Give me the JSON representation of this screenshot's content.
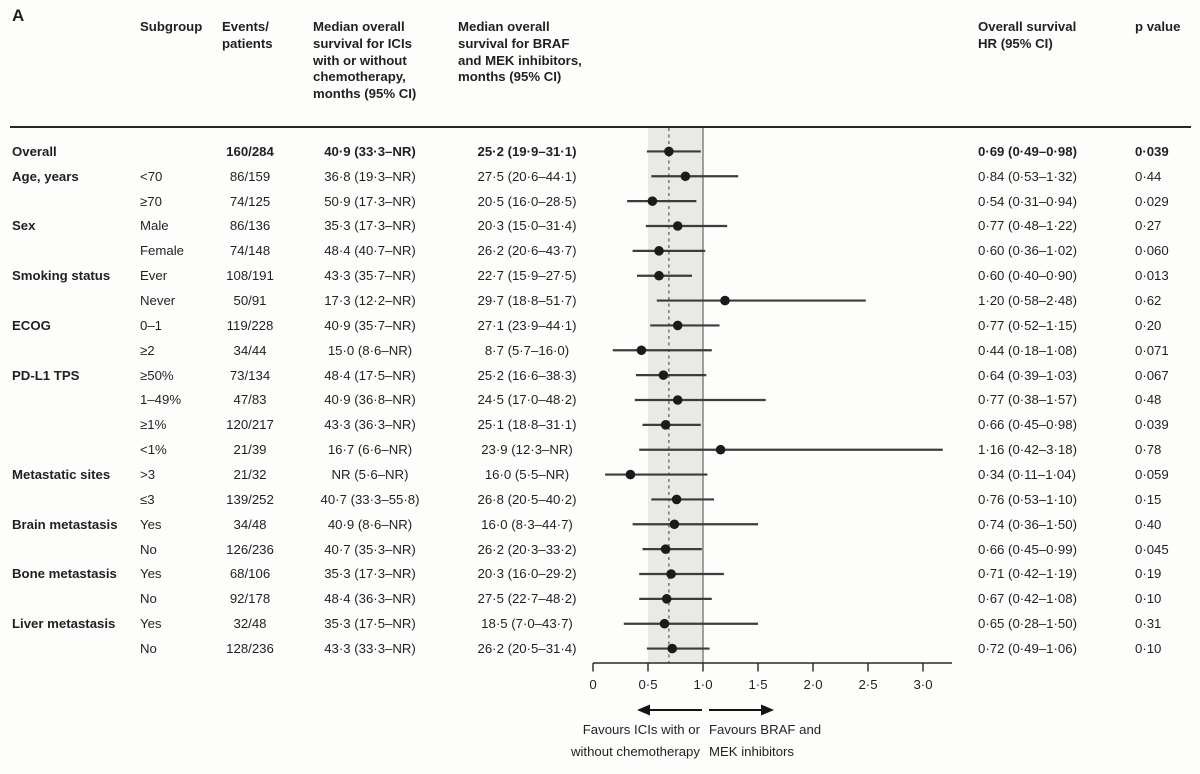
{
  "panel_label": "A",
  "table": {
    "headers": {
      "subgroup": "Subgroup",
      "events": "Events/\npatients",
      "ici": "Median overall\nsurvival for ICIs\nwith or without\nchemotherapy,\nmonths (95% CI)",
      "braf": "Median overall\nsurvival for BRAF\nand MEK inhibitors,\nmonths (95% CI)",
      "hr": "Overall survival\nHR (95% CI)",
      "p": "p value"
    }
  },
  "chart_data": {
    "type": "scatter",
    "subtype": "forest-plot",
    "xlabel_ticks": [
      "0",
      "0·5",
      "1·0",
      "1·5",
      "2·0",
      "2·5",
      "3·0"
    ],
    "axis": {
      "min": 0,
      "max": 3.26,
      "ticks": [
        0,
        0.5,
        1.0,
        1.5,
        2.0,
        2.5,
        3.0
      ]
    },
    "shaded_region": [
      0.5,
      1.0
    ],
    "reference_line": 0.69,
    "null_line": 1.0,
    "favours_left": "Favours ICIs with or\nwithout chemotherapy",
    "favours_right": "Favours BRAF and\nMEK inhibitors",
    "colors": {
      "band": "#e9eae5",
      "reference_dash": "#5f6360",
      "null_line": "#7a7a7a",
      "ci_line": "#3c3c3c",
      "point": "#1b1b1b",
      "axis": "#2a2627",
      "text": "#231f20"
    },
    "rows": [
      {
        "category": "Overall",
        "subgroup": "",
        "events": "160/284",
        "ici": "40·9 (33·3–NR)",
        "braf": "25·2 (19·9–31·1)",
        "hr_text": "0·69 (0·49–0·98)",
        "p": "0·039",
        "hr": 0.69,
        "lo": 0.49,
        "hi": 0.98,
        "bold": true
      },
      {
        "category": "Age, years",
        "subgroup": "<70",
        "events": "86/159",
        "ici": "36·8 (19·3–NR)",
        "braf": "27·5 (20·6–44·1)",
        "hr_text": "0·84 (0·53–1·32)",
        "p": "0·44",
        "hr": 0.84,
        "lo": 0.53,
        "hi": 1.32,
        "bold": false
      },
      {
        "category": "",
        "subgroup": "≥70",
        "events": "74/125",
        "ici": "50·9 (17·3–NR)",
        "braf": "20·5 (16·0–28·5)",
        "hr_text": "0·54 (0·31–0·94)",
        "p": "0·029",
        "hr": 0.54,
        "lo": 0.31,
        "hi": 0.94,
        "bold": false
      },
      {
        "category": "Sex",
        "subgroup": "Male",
        "events": "86/136",
        "ici": "35·3 (17·3–NR)",
        "braf": "20·3 (15·0–31·4)",
        "hr_text": "0·77 (0·48–1·22)",
        "p": "0·27",
        "hr": 0.77,
        "lo": 0.48,
        "hi": 1.22,
        "bold": false
      },
      {
        "category": "",
        "subgroup": "Female",
        "events": "74/148",
        "ici": "48·4 (40·7–NR)",
        "braf": "26·2 (20·6–43·7)",
        "hr_text": "0·60 (0·36–1·02)",
        "p": "0·060",
        "hr": 0.6,
        "lo": 0.36,
        "hi": 1.02,
        "bold": false
      },
      {
        "category": "Smoking status",
        "subgroup": "Ever",
        "events": "108/191",
        "ici": "43·3 (35·7–NR)",
        "braf": "22·7 (15·9–27·5)",
        "hr_text": "0·60 (0·40–0·90)",
        "p": "0·013",
        "hr": 0.6,
        "lo": 0.4,
        "hi": 0.9,
        "bold": false
      },
      {
        "category": "",
        "subgroup": "Never",
        "events": "50/91",
        "ici": "17·3 (12·2–NR)",
        "braf": "29·7 (18·8–51·7)",
        "hr_text": "1·20 (0·58–2·48)",
        "p": "0·62",
        "hr": 1.2,
        "lo": 0.58,
        "hi": 2.48,
        "bold": false
      },
      {
        "category": "ECOG",
        "subgroup": "0–1",
        "events": "119/228",
        "ici": "40·9 (35·7–NR)",
        "braf": "27·1 (23·9–44·1)",
        "hr_text": "0·77 (0·52–1·15)",
        "p": "0·20",
        "hr": 0.77,
        "lo": 0.52,
        "hi": 1.15,
        "bold": false
      },
      {
        "category": "",
        "subgroup": "≥2",
        "events": "34/44",
        "ici": "15·0 (8·6–NR)",
        "braf": "8·7 (5·7–16·0)",
        "hr_text": "0·44 (0·18–1·08)",
        "p": "0·071",
        "hr": 0.44,
        "lo": 0.18,
        "hi": 1.08,
        "bold": false
      },
      {
        "category": "PD-L1 TPS",
        "subgroup": "≥50%",
        "events": "73/134",
        "ici": "48·4 (17·5–NR)",
        "braf": "25·2 (16·6–38·3)",
        "hr_text": "0·64 (0·39–1·03)",
        "p": "0·067",
        "hr": 0.64,
        "lo": 0.39,
        "hi": 1.03,
        "bold": false
      },
      {
        "category": "",
        "subgroup": "1–49%",
        "events": "47/83",
        "ici": "40·9 (36·8–NR)",
        "braf": "24·5 (17·0–48·2)",
        "hr_text": "0·77 (0·38–1·57)",
        "p": "0·48",
        "hr": 0.77,
        "lo": 0.38,
        "hi": 1.57,
        "bold": false
      },
      {
        "category": "",
        "subgroup": "≥1%",
        "events": "120/217",
        "ici": "43·3 (36·3–NR)",
        "braf": "25·1 (18·8–31·1)",
        "hr_text": "0·66 (0·45–0·98)",
        "p": "0·039",
        "hr": 0.66,
        "lo": 0.45,
        "hi": 0.98,
        "bold": false
      },
      {
        "category": "",
        "subgroup": "<1%",
        "events": "21/39",
        "ici": "16·7 (6·6–NR)",
        "braf": "23·9 (12·3–NR)",
        "hr_text": "1·16 (0·42–3·18)",
        "p": "0·78",
        "hr": 1.16,
        "lo": 0.42,
        "hi": 3.18,
        "bold": false
      },
      {
        "category": "Metastatic sites",
        "subgroup": ">3",
        "events": "21/32",
        "ici": "NR (5·6–NR)",
        "braf": "16·0 (5·5–NR)",
        "hr_text": "0·34 (0·11–1·04)",
        "p": "0·059",
        "hr": 0.34,
        "lo": 0.11,
        "hi": 1.04,
        "bold": false
      },
      {
        "category": "",
        "subgroup": "≤3",
        "events": "139/252",
        "ici": "40·7 (33·3–55·8)",
        "braf": "26·8 (20·5–40·2)",
        "hr_text": "0·76 (0·53–1·10)",
        "p": "0·15",
        "hr": 0.76,
        "lo": 0.53,
        "hi": 1.1,
        "bold": false
      },
      {
        "category": "Brain metastasis",
        "subgroup": "Yes",
        "events": "34/48",
        "ici": "40·9 (8·6–NR)",
        "braf": "16·0 (8·3–44·7)",
        "hr_text": "0·74 (0·36–1·50)",
        "p": "0·40",
        "hr": 0.74,
        "lo": 0.36,
        "hi": 1.5,
        "bold": false
      },
      {
        "category": "",
        "subgroup": "No",
        "events": "126/236",
        "ici": "40·7 (35·3–NR)",
        "braf": "26·2 (20·3–33·2)",
        "hr_text": "0·66 (0·45–0·99)",
        "p": "0·045",
        "hr": 0.66,
        "lo": 0.45,
        "hi": 0.99,
        "bold": false
      },
      {
        "category": "Bone metastasis",
        "subgroup": "Yes",
        "events": "68/106",
        "ici": "35·3 (17·3–NR)",
        "braf": "20·3 (16·0–29·2)",
        "hr_text": "0·71 (0·42–1·19)",
        "p": "0·19",
        "hr": 0.71,
        "lo": 0.42,
        "hi": 1.19,
        "bold": false
      },
      {
        "category": "",
        "subgroup": "No",
        "events": "92/178",
        "ici": "48·4 (36·3–NR)",
        "braf": "27·5 (22·7–48·2)",
        "hr_text": "0·67 (0·42–1·08)",
        "p": "0·10",
        "hr": 0.67,
        "lo": 0.42,
        "hi": 1.08,
        "bold": false
      },
      {
        "category": "Liver metastasis",
        "subgroup": "Yes",
        "events": "32/48",
        "ici": "35·3 (17·5–NR)",
        "braf": "18·5 (7·0–43·7)",
        "hr_text": "0·65 (0·28–1·50)",
        "p": "0·31",
        "hr": 0.65,
        "lo": 0.28,
        "hi": 1.5,
        "bold": false
      },
      {
        "category": "",
        "subgroup": "No",
        "events": "128/236",
        "ici": "43·3 (33·3–NR)",
        "braf": "26·2 (20·5–31·4)",
        "hr_text": "0·72 (0·49–1·06)",
        "p": "0·10",
        "hr": 0.72,
        "lo": 0.49,
        "hi": 1.06,
        "bold": false
      }
    ]
  }
}
